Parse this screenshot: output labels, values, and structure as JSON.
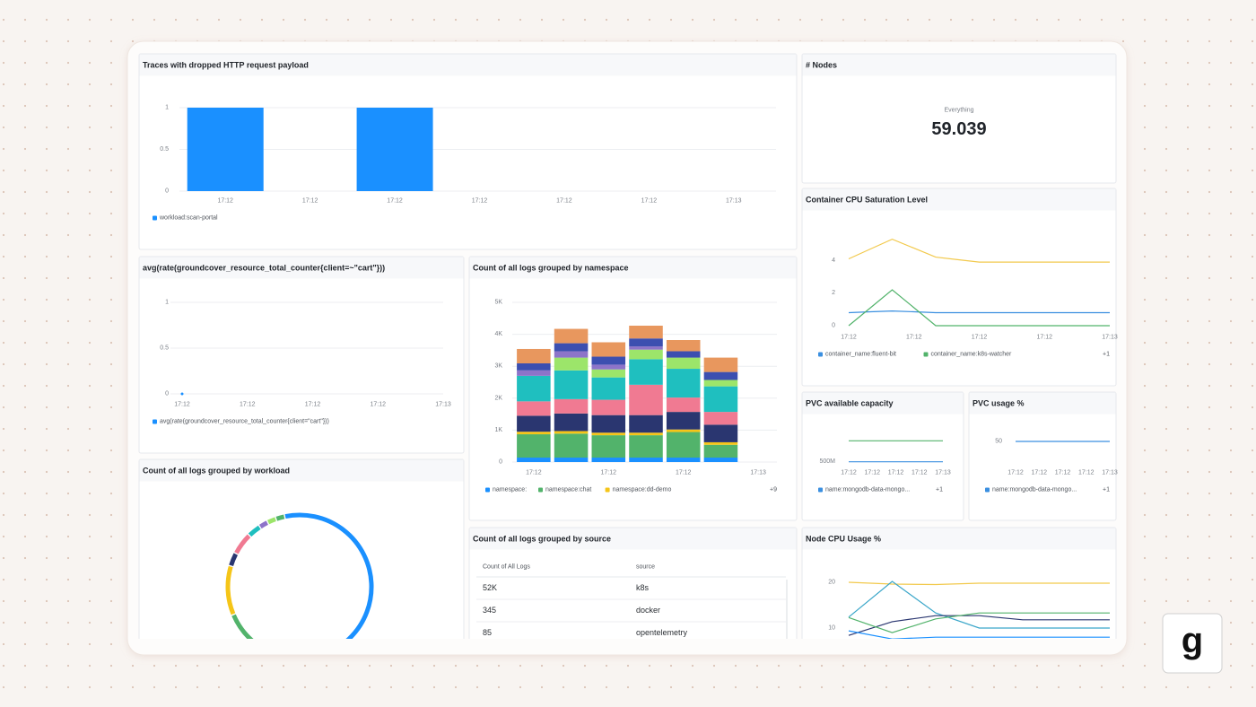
{
  "panels": [
    {
      "title": "Traces with dropped HTTP request payload",
      "type": "bar",
      "categories": [
        "17:12",
        "17:12",
        "17:12",
        "17:12",
        "17:12",
        "17:12",
        "17:13"
      ],
      "ylim": [
        0,
        1
      ],
      "yticks": [
        0,
        0.5,
        1
      ],
      "grid": true,
      "series": [
        {
          "name": "workload:scan-portal",
          "color": "#1a90ff",
          "values": [
            1,
            null,
            1,
            null,
            null,
            null,
            null
          ]
        }
      ]
    },
    {
      "title": "# Nodes",
      "type": "stat",
      "label": "Everything",
      "value": 59.039
    },
    {
      "title": "avg(rate(groundcover_resource_total_counter{client=~\"cart\"}))",
      "type": "line",
      "categories": [
        "17:12",
        "17:12",
        "17:12",
        "17:12",
        "17:13"
      ],
      "ylim": [
        0,
        1
      ],
      "yticks": [
        0,
        0.5,
        1
      ],
      "grid": true,
      "series": [
        {
          "name": "avg(rate(groundcover_resource_total_counter{client=\"cart\"}))",
          "color": "#1a90ff",
          "values": [
            0,
            null,
            null,
            null,
            null
          ]
        }
      ]
    },
    {
      "title": "Count of all logs grouped by namespace",
      "type": "bar",
      "categories": [
        "17:12",
        null,
        "17:12",
        null,
        "17:12",
        null,
        "17:13"
      ],
      "ylim": [
        0,
        5000
      ],
      "yticks": [
        0,
        {
          "value": 1000,
          "label": "1K"
        },
        {
          "value": 2000,
          "label": "2K"
        },
        {
          "value": 3000,
          "label": "3K"
        },
        {
          "value": 4000,
          "label": "4K"
        },
        {
          "value": 5000,
          "label": "5K"
        }
      ],
      "grid": true,
      "legend_more": "+9",
      "series": [
        {
          "name": "namespace:",
          "color": "#1a90ff",
          "values": [
            140,
            140,
            140,
            140,
            140,
            140,
            null
          ]
        },
        {
          "name": "namespace:chat",
          "color": "#52b36b",
          "values": [
            730,
            750,
            700,
            700,
            800,
            400,
            null
          ]
        },
        {
          "name": "namespace:dd-demo",
          "color": "#f5c518",
          "values": [
            80,
            80,
            80,
            80,
            80,
            80,
            null
          ]
        },
        {
          "color": "#2a3670",
          "values": [
            500,
            550,
            550,
            550,
            550,
            550,
            null
          ]
        },
        {
          "color": "#f07a92",
          "values": [
            450,
            450,
            480,
            950,
            450,
            400,
            null
          ]
        },
        {
          "color": "#1fbfbf",
          "values": [
            800,
            900,
            700,
            800,
            900,
            800,
            null
          ]
        },
        {
          "color": "#9ce56a",
          "values": [
            0,
            400,
            250,
            300,
            350,
            200,
            null
          ]
        },
        {
          "color": "#8d74c9",
          "values": [
            170,
            200,
            150,
            100,
            0,
            0,
            null
          ]
        },
        {
          "color": "#3c4fb0",
          "values": [
            220,
            250,
            250,
            250,
            200,
            250,
            null
          ]
        },
        {
          "color": "#e8975e",
          "values": [
            450,
            450,
            450,
            400,
            350,
            450,
            null
          ]
        }
      ]
    },
    {
      "title": "Count of all logs grouped by workload",
      "type": "donut",
      "values": [
        55,
        17,
        11,
        3,
        5,
        3,
        2,
        2,
        2
      ],
      "colors": [
        "#1a90ff",
        "#52b36b",
        "#f5c518",
        "#2a3670",
        "#f07a92",
        "#1fbfbf",
        "#8d74c9",
        "#9ce56a",
        "#52b36b"
      ]
    },
    {
      "title": "Count of all logs grouped by source",
      "type": "table",
      "columns": [
        "Count of All Logs",
        "source"
      ],
      "rows": [
        [
          "52K",
          "k8s"
        ],
        [
          "345",
          "docker"
        ],
        [
          "85",
          "opentelemetry"
        ]
      ]
    },
    {
      "title": "Container CPU Saturation Level",
      "type": "line",
      "categories": [
        "17:12",
        null,
        null,
        "17:12",
        null,
        null,
        "17:12",
        null,
        null,
        "17:12",
        null,
        null,
        "17:13"
      ],
      "ylim": [
        0,
        5.5
      ],
      "yticks": [
        0,
        2,
        4
      ],
      "grid": false,
      "legend_more": "+1",
      "series": [
        {
          "name": "container_name:fluent-bit",
          "color": "#3a8fe0",
          "values": [
            0.8,
            0.85,
            0.9,
            0.85,
            0.8,
            0.8,
            0.8,
            0.8,
            0.8,
            0.8,
            0.8,
            0.8,
            0.8
          ]
        },
        {
          "name": "container_name:k8s-watcher",
          "color": "#52b36b",
          "values": [
            0,
            1.1,
            2.2,
            1.1,
            0,
            0,
            0,
            0,
            0,
            0,
            0,
            0,
            0
          ]
        },
        {
          "color": "#f2c94c",
          "values": [
            4.1,
            4.7,
            5.3,
            4.75,
            4.2,
            4.05,
            3.9,
            3.9,
            3.9,
            3.9,
            3.9,
            3.9,
            3.9
          ]
        }
      ]
    },
    {
      "title": "PVC available capacity",
      "type": "line",
      "categories": [
        "17:12",
        "17:12",
        "17:12",
        "17:12",
        "17:13"
      ],
      "ylim": [
        460000000,
        640000000
      ],
      "yticks": [
        {
          "value": 500000000,
          "label": "500M"
        }
      ],
      "grid": false,
      "legend_more": "+1",
      "series": [
        {
          "name": "name:mongodb-data-mongo...",
          "color": "#3a8fe0",
          "values": [
            500000000,
            500000000,
            500000000,
            500000000,
            500000000
          ]
        },
        {
          "color": "#52b36b",
          "values": [
            570000000,
            570000000,
            570000000,
            570000000,
            570000000
          ]
        }
      ]
    },
    {
      "title": "PVC usage %",
      "type": "line",
      "categories": [
        "17:12",
        "17:12",
        "17:12",
        "17:12",
        "17:13"
      ],
      "ylim": [
        35,
        60
      ],
      "yticks": [
        50
      ],
      "grid": false,
      "legend_more": "+1",
      "series": [
        {
          "name": "name:mongodb-data-mongo...",
          "color": "#3a8fe0",
          "values": [
            50,
            50,
            50,
            50,
            50
          ]
        }
      ]
    },
    {
      "title": "Node CPU Usage %",
      "type": "line",
      "ylim": [
        5,
        22
      ],
      "yticks": [
        10,
        20
      ],
      "grid": false,
      "series": [
        {
          "color": "#f2c94c",
          "values": [
            20,
            19.6,
            19.5,
            19.8,
            19.8,
            19.8,
            19.8
          ]
        },
        {
          "color": "#3aa6c9",
          "values": [
            12.4,
            20.2,
            13.3,
            10,
            10,
            10,
            10
          ]
        },
        {
          "color": "#2a3670",
          "values": [
            8.4,
            11.4,
            12.7,
            12.7,
            11.8,
            11.8,
            11.8
          ]
        },
        {
          "color": "#52b36b",
          "values": [
            12.3,
            9,
            12,
            13.3,
            13.3,
            13.3,
            13.3
          ]
        },
        {
          "color": "#1a90ff",
          "values": [
            9.4,
            7.6,
            8,
            8,
            8,
            8,
            8
          ]
        }
      ]
    }
  ],
  "logo": "g"
}
